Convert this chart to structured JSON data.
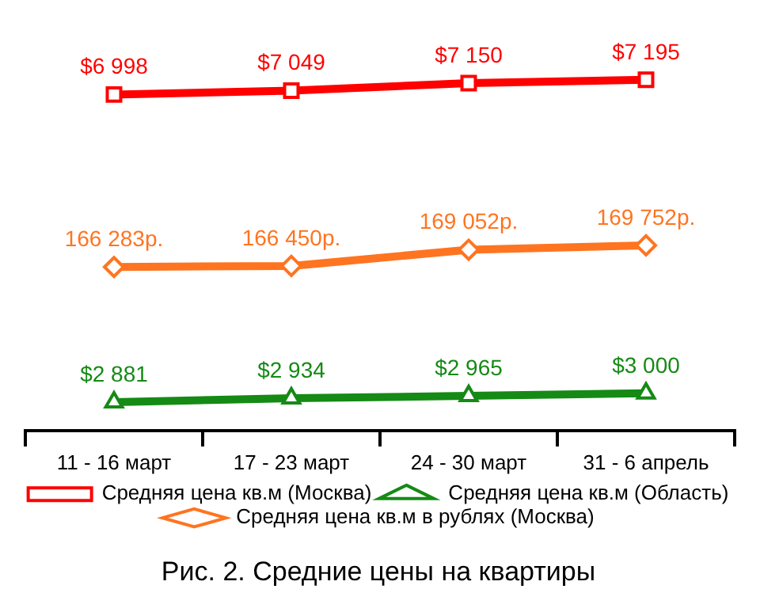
{
  "chart_data": {
    "type": "line",
    "title": "Рис. 2. Средние цены на квартиры",
    "categories": [
      "11 - 16 март",
      "17 - 23 март",
      "24 - 30 март",
      "31 - 6 апрель"
    ],
    "series": [
      {
        "name": "Средняя цена кв.м (Москва)",
        "color": "#ff0000",
        "marker": "square",
        "values": [
          6998,
          7049,
          7150,
          7195
        ],
        "value_labels": [
          "$6 998",
          "$7 049",
          "$7 150",
          "$7 195"
        ]
      },
      {
        "name": "Средняя цена кв.м (Область)",
        "color": "#158a15",
        "marker": "triangle",
        "values": [
          2881,
          2934,
          2965,
          3000
        ],
        "value_labels": [
          "$2 881",
          "$2 934",
          "$2 965",
          "$3 000"
        ]
      },
      {
        "name": "Средняя цена кв.м в рублях (Москва)",
        "color": "#ff7420",
        "marker": "diamond",
        "axis": "y2",
        "values": [
          166283,
          166450,
          169052,
          169752
        ],
        "value_labels": [
          "166 283р.",
          "166 450р.",
          "169 052р.",
          "169 752р."
        ]
      }
    ],
    "tick_labels": "x",
    "grid": false,
    "legend": "bottom",
    "line_style": "solid"
  }
}
